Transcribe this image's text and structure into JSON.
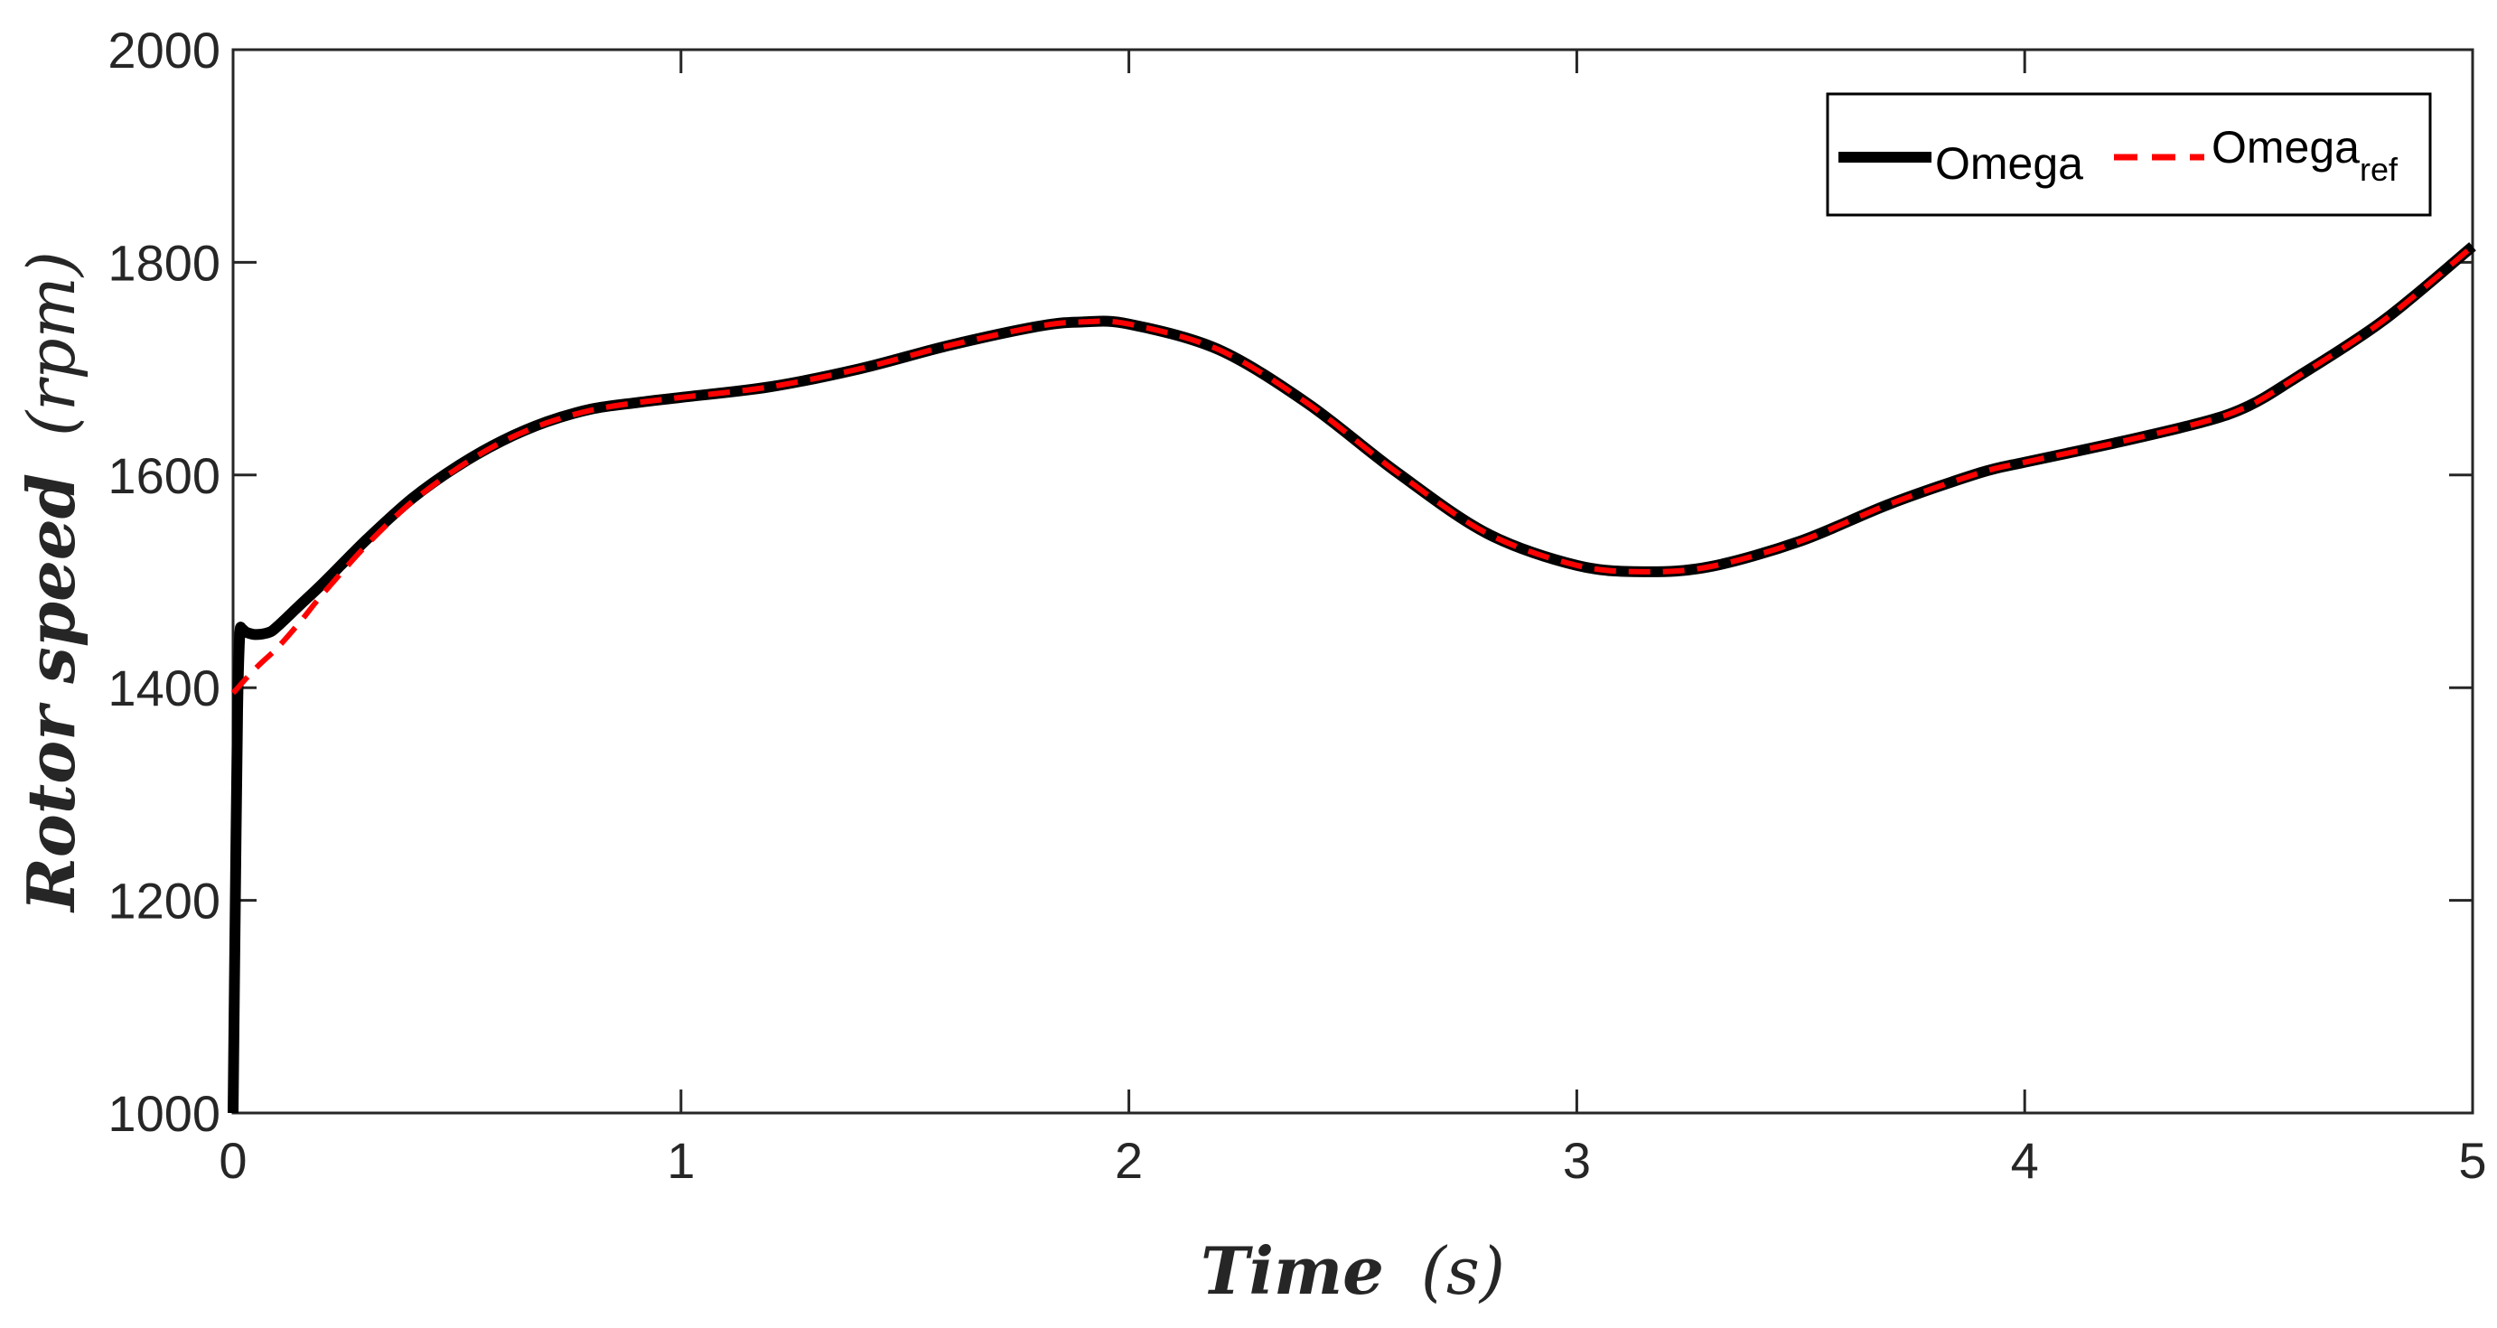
{
  "chart_data": {
    "type": "line",
    "xlabel_main": "Time",
    "xlabel_unit": "(s)",
    "ylabel_main": "Rotor speed",
    "ylabel_unit": "(rpm)",
    "xlim": [
      0,
      5
    ],
    "ylim": [
      1000,
      2000
    ],
    "xticks": [
      0,
      1,
      2,
      3,
      4,
      5
    ],
    "yticks": [
      1000,
      1200,
      1400,
      1600,
      1800,
      2000
    ],
    "grid": false,
    "legend_position": "top-right",
    "series": [
      {
        "name": "Omega",
        "color": "#000000",
        "style": "solid",
        "x": [
          0,
          0.005,
          0.01,
          0.015,
          0.02,
          0.03,
          0.05,
          0.08,
          0.1,
          0.15,
          0.2,
          0.3,
          0.4,
          0.5,
          0.6,
          0.7,
          0.8,
          0.9,
          1.0,
          1.2,
          1.4,
          1.6,
          1.8,
          1.9,
          2.0,
          2.2,
          2.4,
          2.6,
          2.8,
          3.0,
          3.15,
          3.3,
          3.5,
          3.7,
          3.9,
          4.0,
          4.2,
          4.4,
          4.5,
          4.6,
          4.8,
          5.0
        ],
        "y": [
          1000,
          1200,
          1380,
          1450,
          1455,
          1452,
          1450,
          1452,
          1458,
          1478,
          1498,
          1540,
          1578,
          1608,
          1632,
          1650,
          1662,
          1668,
          1673,
          1683,
          1700,
          1722,
          1740,
          1744,
          1742,
          1718,
          1667,
          1602,
          1545,
          1515,
          1509,
          1514,
          1538,
          1573,
          1602,
          1612,
          1630,
          1650,
          1665,
          1690,
          1745,
          1815
        ]
      },
      {
        "name": "Omega",
        "name_sub": "ref",
        "color": "#ff0000",
        "style": "dashed",
        "x": [
          0,
          0.05,
          0.1,
          0.15,
          0.2,
          0.3,
          0.4,
          0.5,
          0.6,
          0.7,
          0.8,
          0.9,
          1.0,
          1.2,
          1.4,
          1.6,
          1.8,
          1.9,
          2.0,
          2.2,
          2.4,
          2.6,
          2.8,
          3.0,
          3.15,
          3.3,
          3.5,
          3.7,
          3.9,
          4.0,
          4.2,
          4.4,
          4.5,
          4.6,
          4.8,
          5.0
        ],
        "y": [
          1395,
          1418,
          1438,
          1462,
          1488,
          1535,
          1575,
          1606,
          1631,
          1649,
          1661,
          1668,
          1673,
          1683,
          1700,
          1722,
          1740,
          1744,
          1742,
          1718,
          1667,
          1602,
          1545,
          1515,
          1509,
          1514,
          1538,
          1573,
          1602,
          1612,
          1630,
          1650,
          1665,
          1690,
          1745,
          1815
        ]
      }
    ]
  }
}
